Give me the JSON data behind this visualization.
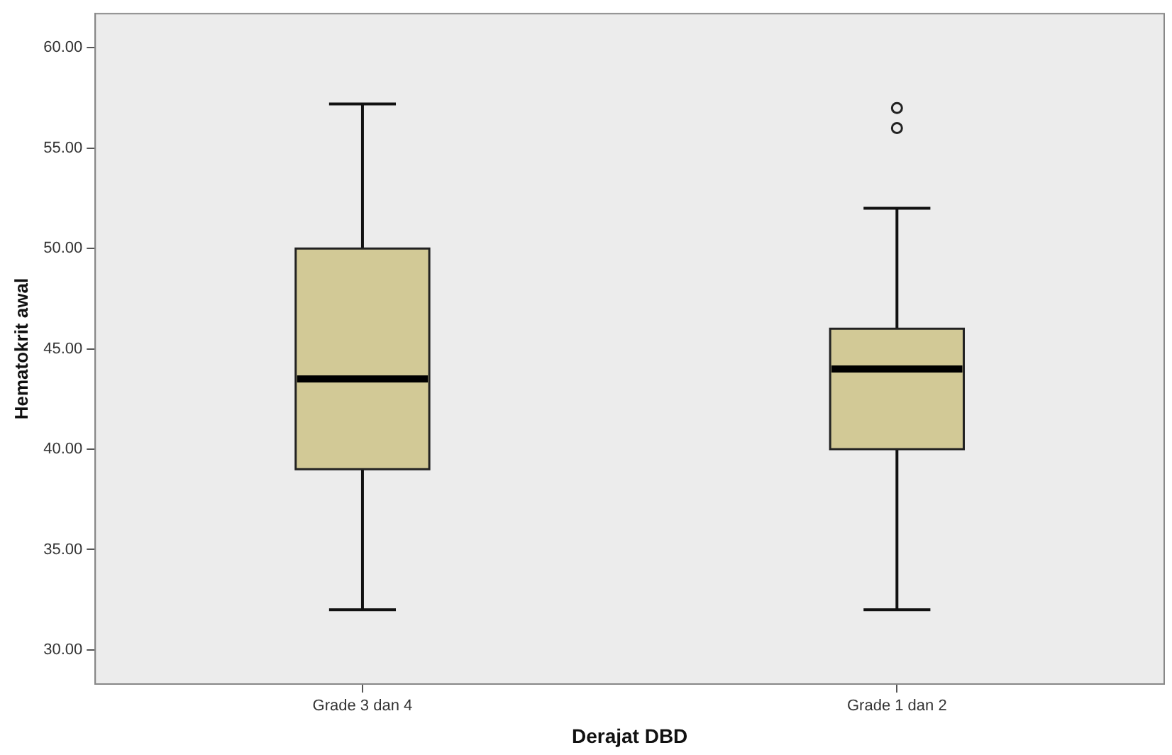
{
  "chart_data": {
    "type": "box",
    "xlabel": "Derajat DBD",
    "ylabel": "Hematokrit awal",
    "categories": [
      "Grade 3 dan 4",
      "Grade 1 dan 2"
    ],
    "boxes": [
      {
        "low": 32,
        "q1": 39,
        "median": 43.5,
        "q3": 50,
        "high": 57.2
      },
      {
        "low": 32,
        "q1": 40,
        "median": 44,
        "q3": 46,
        "high": 52,
        "outliers": [
          56,
          57
        ]
      }
    ],
    "color": "#d2c996",
    "ylim": [
      28.3,
      61.7
    ],
    "yticks": [
      {
        "value": 30,
        "label": "30.00"
      },
      {
        "value": 35,
        "label": "35.00"
      },
      {
        "value": 40,
        "label": "40.00"
      },
      {
        "value": 45,
        "label": "45.00"
      },
      {
        "value": 50,
        "label": "50.00"
      },
      {
        "value": 55,
        "label": "55.00"
      },
      {
        "value": 60,
        "label": "60.00"
      }
    ],
    "grid": false
  }
}
